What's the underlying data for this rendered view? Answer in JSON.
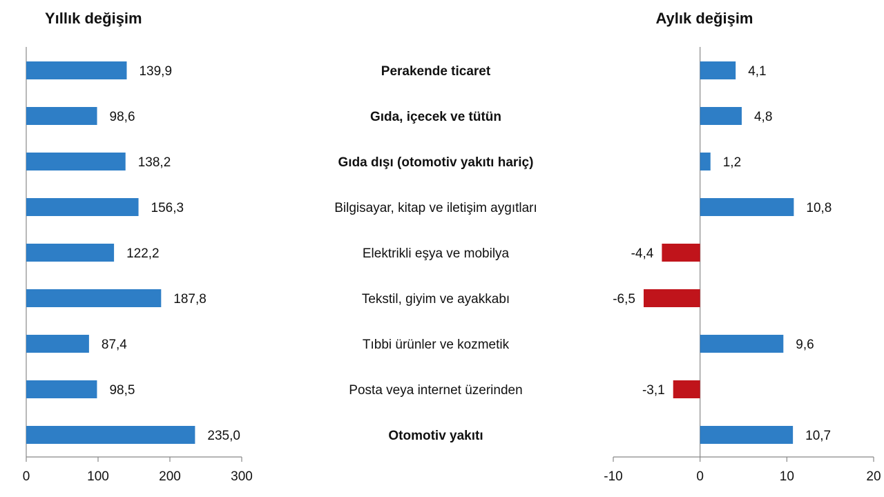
{
  "chart_data": {
    "type": "bar",
    "orientation": "horizontal",
    "categories": [
      "Perakende ticaret",
      "Gıda, içecek ve tütün",
      "Gıda dışı (otomotiv yakıtı hariç)",
      "Bilgisayar, kitap ve iletişim aygıtları",
      "Elektrikli eşya ve mobilya",
      "Tekstil, giyim ve ayakkabı",
      "Tıbbi ürünler ve kozmetik",
      "Posta veya internet üzerinden",
      "Otomotiv yakıtı"
    ],
    "bold_categories": [
      true,
      true,
      true,
      false,
      false,
      false,
      false,
      false,
      true
    ],
    "panels": [
      {
        "title": "Yıllık değişim",
        "values": [
          139.9,
          98.6,
          138.2,
          156.3,
          122.2,
          187.8,
          87.4,
          98.5,
          235.0
        ],
        "labels": [
          "139,9",
          "98,6",
          "138,2",
          "156,3",
          "122,2",
          "187,8",
          "87,4",
          "98,5",
          "235,0"
        ],
        "xlim": [
          0,
          300
        ],
        "ticks": [
          0,
          100,
          200,
          300
        ]
      },
      {
        "title": "Aylık değişim",
        "values": [
          4.1,
          4.8,
          1.2,
          10.8,
          -4.4,
          -6.5,
          9.6,
          -3.1,
          10.7
        ],
        "labels": [
          "4,1",
          "4,8",
          "1,2",
          "10,8",
          "-4,4",
          "-6,5",
          "9,6",
          "-3,1",
          "10,7"
        ],
        "xlim": [
          -10,
          20
        ],
        "ticks": [
          -10,
          0,
          10,
          20
        ]
      }
    ],
    "colors": {
      "positive": "#2e7ec6",
      "negative": "#c0141b"
    },
    "grid": false,
    "legend": "none"
  }
}
